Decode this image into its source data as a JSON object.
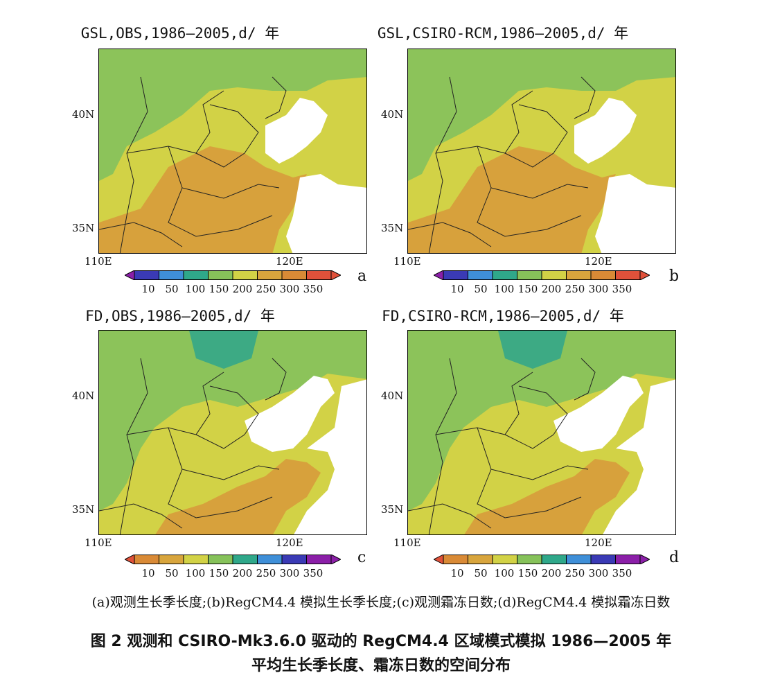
{
  "panels": [
    {
      "id": "a",
      "title": "GSL,OBS,1986—2005,d/ 年",
      "label": "a",
      "variable": "GSL",
      "source": "OBS",
      "colors": {
        "base": "#d2d246",
        "north": "#8cc35a",
        "south": "#d7a13c"
      }
    },
    {
      "id": "b",
      "title": "GSL,CSIRO-RCM,1986—2005,d/ 年",
      "label": "b",
      "variable": "GSL",
      "source": "CSIRO-RCM",
      "colors": {
        "base": "#d2d246",
        "north": "#8cc35a",
        "south": "#d7a13c"
      }
    },
    {
      "id": "c",
      "title": "FD,OBS,1986—2005,d/ 年",
      "label": "c",
      "variable": "FD",
      "source": "OBS",
      "colors": {
        "base": "#d2d246",
        "north": "#8cc35a",
        "south": "#d7a13c"
      }
    },
    {
      "id": "d",
      "title": "FD,CSIRO-RCM,1986—2005,d/ 年",
      "label": "d",
      "variable": "FD",
      "source": "CSIRO-RCM",
      "colors": {
        "base": "#d2d246",
        "north": "#8cc35a",
        "south": "#d7a13c"
      }
    }
  ],
  "axes": {
    "lat_labels": [
      "40N",
      "35N"
    ],
    "lon_labels": [
      "110E",
      "120E"
    ]
  },
  "colorbar": {
    "ticks": [
      "10",
      "50",
      "100",
      "150",
      "200",
      "250",
      "300",
      "350"
    ],
    "gsl_colors": [
      "#8b1fa8",
      "#3a3ab5",
      "#3f8fd8",
      "#2fa88a",
      "#86c25a",
      "#d2d246",
      "#d8a53d",
      "#d98a36",
      "#e0513a"
    ],
    "fd_colors": [
      "#e0513a",
      "#d98a36",
      "#d8a53d",
      "#d2d246",
      "#86c25a",
      "#2fa88a",
      "#3f8fd8",
      "#3a3ab5",
      "#8b1fa8"
    ]
  },
  "caption": {
    "subcaption": "(a)观测生长季长度;(b)RegCM4.4 模拟生长季长度;(c)观测霜冻日数;(d)RegCM4.4 模拟霜冻日数",
    "line1": "图 2  观测和 CSIRO-Mk3.6.0 驱动的 RegCM4.4 区域模式模拟 1986—2005 年",
    "line2": "平均生长季长度、霜冻日数的空间分布"
  }
}
